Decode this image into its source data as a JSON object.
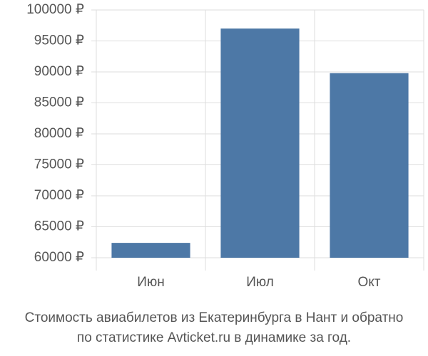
{
  "chart_data": {
    "type": "bar",
    "title": [
      "Стоимость авиабилетов из Екатеринбурга в Нант и обратно",
      "по статистике Avticket.ru в динамике за год."
    ],
    "categories": [
      "Июн",
      "Июл",
      "Окт"
    ],
    "values": [
      62400,
      97000,
      89800
    ],
    "color": "#4d78a6",
    "ylim": [
      60000,
      100000
    ],
    "yticks": [
      {
        "value": 60000,
        "label": "60000 ₽"
      },
      {
        "value": 65000,
        "label": "65000 ₽"
      },
      {
        "value": 70000,
        "label": "70000 ₽"
      },
      {
        "value": 75000,
        "label": "75000 ₽"
      },
      {
        "value": 80000,
        "label": "80000 ₽"
      },
      {
        "value": 85000,
        "label": "85000 ₽"
      },
      {
        "value": 90000,
        "label": "90000 ₽"
      },
      {
        "value": 95000,
        "label": "95000 ₽"
      },
      {
        "value": 100000,
        "label": "100000 ₽"
      }
    ],
    "grid": true
  }
}
